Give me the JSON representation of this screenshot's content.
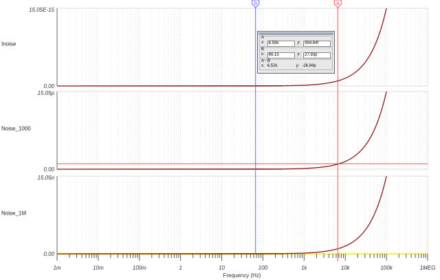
{
  "chart_data": [
    {
      "type": "line",
      "ylabel": "Inoise",
      "ytick_top": "15.05E-15",
      "ytick_bottom": "0.00",
      "ylim": [
        0,
        1.505e-14
      ]
    },
    {
      "type": "line",
      "ylabel": "Noise_1000",
      "ytick_top": "15.05p",
      "ytick_bottom": "0.00",
      "ylim": [
        0,
        1.505e-11
      ]
    },
    {
      "type": "line",
      "ylabel": "Noise_1M",
      "ytick_top": "15.05n",
      "ytick_bottom": "0.00",
      "ylim": [
        0,
        1.505e-08
      ]
    }
  ],
  "xaxis": {
    "label": "Frequency (Hz)",
    "scale": "log",
    "xlim": [
      0.001,
      1000000
    ],
    "ticks": [
      "1m",
      "10m",
      "100m",
      "1",
      "10",
      "100",
      "1k",
      "10k",
      "100k",
      "1MEG"
    ]
  },
  "curve": {
    "x_start": 300,
    "x_full_scale": 100000,
    "color": "#8b1a1a"
  },
  "cursors": {
    "a": {
      "label": "a",
      "x": 6590,
      "color": "#ff5555"
    },
    "b": {
      "label": "b",
      "x": 66.15,
      "color": "#6666ff"
    }
  },
  "cursor_box": {
    "a_title": "A",
    "a_x_label": "x:",
    "a_x": "6.59k",
    "a_y_label": "y:",
    "a_y": "994.64f",
    "b_title": "B",
    "b_x_label": "x:",
    "b_x": "66.15",
    "b_y_label": "y:",
    "b_y": "27.93p",
    "d_title": "A - B",
    "d_x_label": "x:",
    "d_x": "6.52k",
    "d_y_label": "y:",
    "d_y": "-26.94p"
  }
}
